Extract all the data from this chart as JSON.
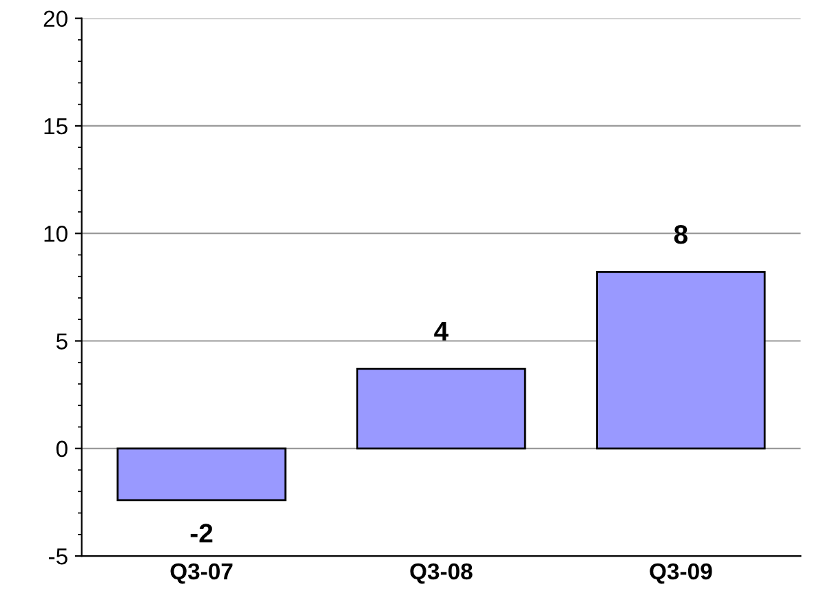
{
  "chart_data": {
    "type": "bar",
    "categories": [
      "Q3-07",
      "Q3-08",
      "Q3-09"
    ],
    "values": [
      -2.4,
      3.7,
      8.2
    ],
    "value_labels": [
      "-2",
      "4",
      "8"
    ],
    "color": "#9999ff",
    "ylim": [
      -5,
      20
    ],
    "yticks": [
      -5,
      0,
      5,
      10,
      15,
      20
    ],
    "grid": "y"
  }
}
